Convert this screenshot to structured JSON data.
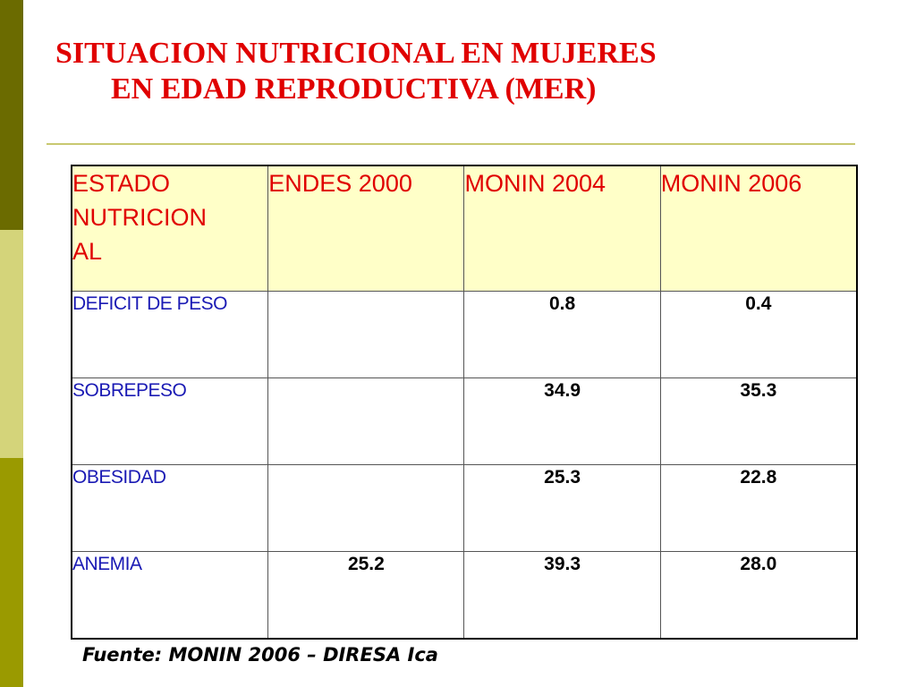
{
  "slide": {
    "title_line1": "SITUACION  NUTRICIONAL EN MUJERES",
    "title_line2": "EN EDAD REPRODUCTIVA (MER)",
    "source": "Fuente: MONIN 2006 – DIRESA Ica"
  },
  "table": {
    "headers": [
      "ESTADO NUTRICIONAL",
      "ENDES 2000",
      "MONIN 2004",
      "MONIN 2006"
    ],
    "header_first_lines": [
      "ESTADO",
      "NUTRICION",
      "AL"
    ],
    "rows": [
      {
        "label": "DEFICIT DE PESO",
        "endes2000": "",
        "monin2004": "0.8",
        "monin2006": "0.4"
      },
      {
        "label": "SOBREPESO",
        "endes2000": "",
        "monin2004": "34.9",
        "monin2006": "35.3"
      },
      {
        "label": "OBESIDAD",
        "endes2000": "",
        "monin2004": "25.3",
        "monin2006": "22.8"
      },
      {
        "label": "ANEMIA",
        "endes2000": "25.2",
        "monin2004": "39.3",
        "monin2006": "28.0"
      }
    ]
  },
  "colors": {
    "title": "#e00000",
    "header_bg": "#ffffc8",
    "row_label": "#1a1ab4",
    "bar_dark": "#6b6b00",
    "bar_light": "#d4d47a",
    "bar_mid": "#9a9a00"
  }
}
